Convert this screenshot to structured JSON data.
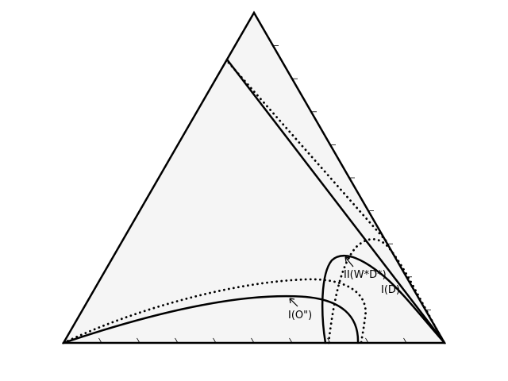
{
  "diagram": {
    "colors": {
      "fill": "#f5f5f5",
      "stroke": "#000000"
    },
    "labels": {
      "o_double_prime": "I(O\")",
      "w_star_d": "II(W*D*)",
      "d": "I(D)"
    }
  }
}
